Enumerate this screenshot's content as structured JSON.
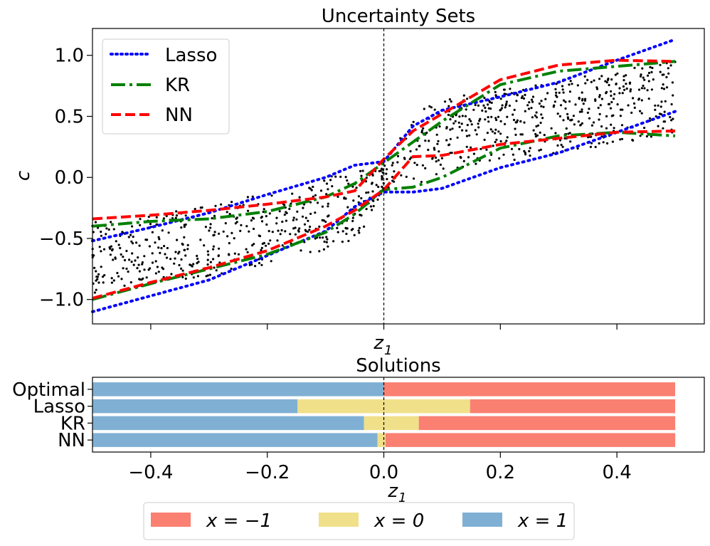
{
  "chart_data": [
    {
      "type": "line",
      "title": "Uncertainty Sets",
      "xlabel": "z_1",
      "ylabel": "c",
      "xlim": [
        -0.5,
        0.55
      ],
      "ylim": [
        -1.2,
        1.22
      ],
      "xticks": [
        -0.4,
        -0.2,
        0.0,
        0.2,
        0.4
      ],
      "xtick_labels_shown": false,
      "yticks": [
        -1.0,
        -0.5,
        0.0,
        0.5,
        1.0
      ],
      "ytick_labels": [
        "−1.0",
        "−0.5",
        "0.0",
        "0.5",
        "1.0"
      ],
      "vline_x": 0.0,
      "legend_position": "upper-left",
      "series": [
        {
          "name": "Lasso",
          "color": "#0000ff",
          "style": "dotted",
          "upper": {
            "x": [
              -0.5,
              -0.4,
              -0.3,
              -0.2,
              -0.1,
              -0.05,
              0.0,
              0.05,
              0.1,
              0.2,
              0.3,
              0.4,
              0.5
            ],
            "y": [
              -0.52,
              -0.41,
              -0.29,
              -0.14,
              0.0,
              0.1,
              0.13,
              0.42,
              0.55,
              0.66,
              0.78,
              0.96,
              1.13
            ]
          },
          "lower": {
            "x": [
              -0.5,
              -0.4,
              -0.3,
              -0.2,
              -0.1,
              -0.05,
              0.0,
              0.05,
              0.1,
              0.2,
              0.3,
              0.4,
              0.5
            ],
            "y": [
              -1.1,
              -0.97,
              -0.84,
              -0.64,
              -0.44,
              -0.24,
              -0.12,
              -0.12,
              -0.09,
              0.08,
              0.2,
              0.37,
              0.54
            ]
          }
        },
        {
          "name": "KR",
          "color": "#008000",
          "style": "dashdot",
          "upper": {
            "x": [
              -0.5,
              -0.4,
              -0.3,
              -0.2,
              -0.1,
              -0.05,
              0.0,
              0.05,
              0.1,
              0.2,
              0.3,
              0.4,
              0.5
            ],
            "y": [
              -0.4,
              -0.36,
              -0.34,
              -0.28,
              -0.16,
              -0.05,
              0.12,
              0.29,
              0.46,
              0.76,
              0.87,
              0.91,
              0.95
            ]
          },
          "lower": {
            "x": [
              -0.5,
              -0.4,
              -0.3,
              -0.2,
              -0.1,
              -0.05,
              0.0,
              0.05,
              0.1,
              0.2,
              0.3,
              0.4,
              0.5
            ],
            "y": [
              -1.0,
              -0.87,
              -0.75,
              -0.63,
              -0.45,
              -0.3,
              -0.1,
              -0.08,
              0.0,
              0.24,
              0.34,
              0.37,
              0.34
            ]
          }
        },
        {
          "name": "NN",
          "color": "#ff0000",
          "style": "dashed",
          "upper": {
            "x": [
              -0.5,
              -0.4,
              -0.3,
              -0.2,
              -0.1,
              -0.05,
              0.0,
              0.05,
              0.1,
              0.2,
              0.3,
              0.4,
              0.5
            ],
            "y": [
              -0.34,
              -0.31,
              -0.27,
              -0.22,
              -0.16,
              -0.11,
              0.15,
              0.38,
              0.52,
              0.8,
              0.92,
              0.96,
              0.95
            ]
          },
          "lower": {
            "x": [
              -0.5,
              -0.4,
              -0.3,
              -0.2,
              -0.1,
              -0.05,
              0.0,
              0.05,
              0.1,
              0.2,
              0.3,
              0.4,
              0.5
            ],
            "y": [
              -0.99,
              -0.86,
              -0.74,
              -0.6,
              -0.4,
              -0.27,
              -0.1,
              0.17,
              0.18,
              0.27,
              0.32,
              0.37,
              0.38
            ]
          }
        }
      ],
      "scatter": {
        "color": "#000000",
        "count": 1000,
        "center_curve": {
          "x": [
            -0.5,
            -0.3,
            -0.1,
            -0.04,
            0.0,
            0.04,
            0.1,
            0.3,
            0.5
          ],
          "y": [
            -0.65,
            -0.52,
            -0.3,
            -0.2,
            0.0,
            0.2,
            0.35,
            0.5,
            0.65
          ]
        },
        "half_width": 0.3
      }
    },
    {
      "type": "bar",
      "orientation": "horizontal-stacked",
      "title": "Solutions",
      "xlabel": "z_1",
      "xlim": [
        -0.5,
        0.55
      ],
      "xticks": [
        -0.4,
        -0.2,
        0.0,
        0.2,
        0.4
      ],
      "xtick_labels": [
        "−0.4",
        "−0.2",
        "0.0",
        "0.2",
        "0.4"
      ],
      "vline_x": 0.0,
      "categories": [
        "Optimal",
        "Lasso",
        "KR",
        "NN"
      ],
      "segments": [
        [
          {
            "label": "x = 1",
            "from": -0.5,
            "to": 0.0
          },
          {
            "label": "x = −1",
            "from": 0.0,
            "to": 0.5
          }
        ],
        [
          {
            "label": "x = 1",
            "from": -0.5,
            "to": -0.148
          },
          {
            "label": "x = 0",
            "from": -0.148,
            "to": 0.148
          },
          {
            "label": "x = −1",
            "from": 0.148,
            "to": 0.5
          }
        ],
        [
          {
            "label": "x = 1",
            "from": -0.5,
            "to": -0.034
          },
          {
            "label": "x = 0",
            "from": -0.034,
            "to": 0.06
          },
          {
            "label": "x = −1",
            "from": 0.06,
            "to": 0.5
          }
        ],
        [
          {
            "label": "x = 1",
            "from": -0.5,
            "to": -0.011
          },
          {
            "label": "x = 0",
            "from": -0.011,
            "to": 0.003
          },
          {
            "label": "x = −1",
            "from": 0.003,
            "to": 0.5
          }
        ]
      ],
      "legend_position": "bottom-center",
      "legend": [
        {
          "label": "x = −1",
          "color": "#fa8072"
        },
        {
          "label": "x = 0",
          "color": "#f0e08a"
        },
        {
          "label": "x = 1",
          "color": "#7fb0d4"
        }
      ]
    }
  ]
}
